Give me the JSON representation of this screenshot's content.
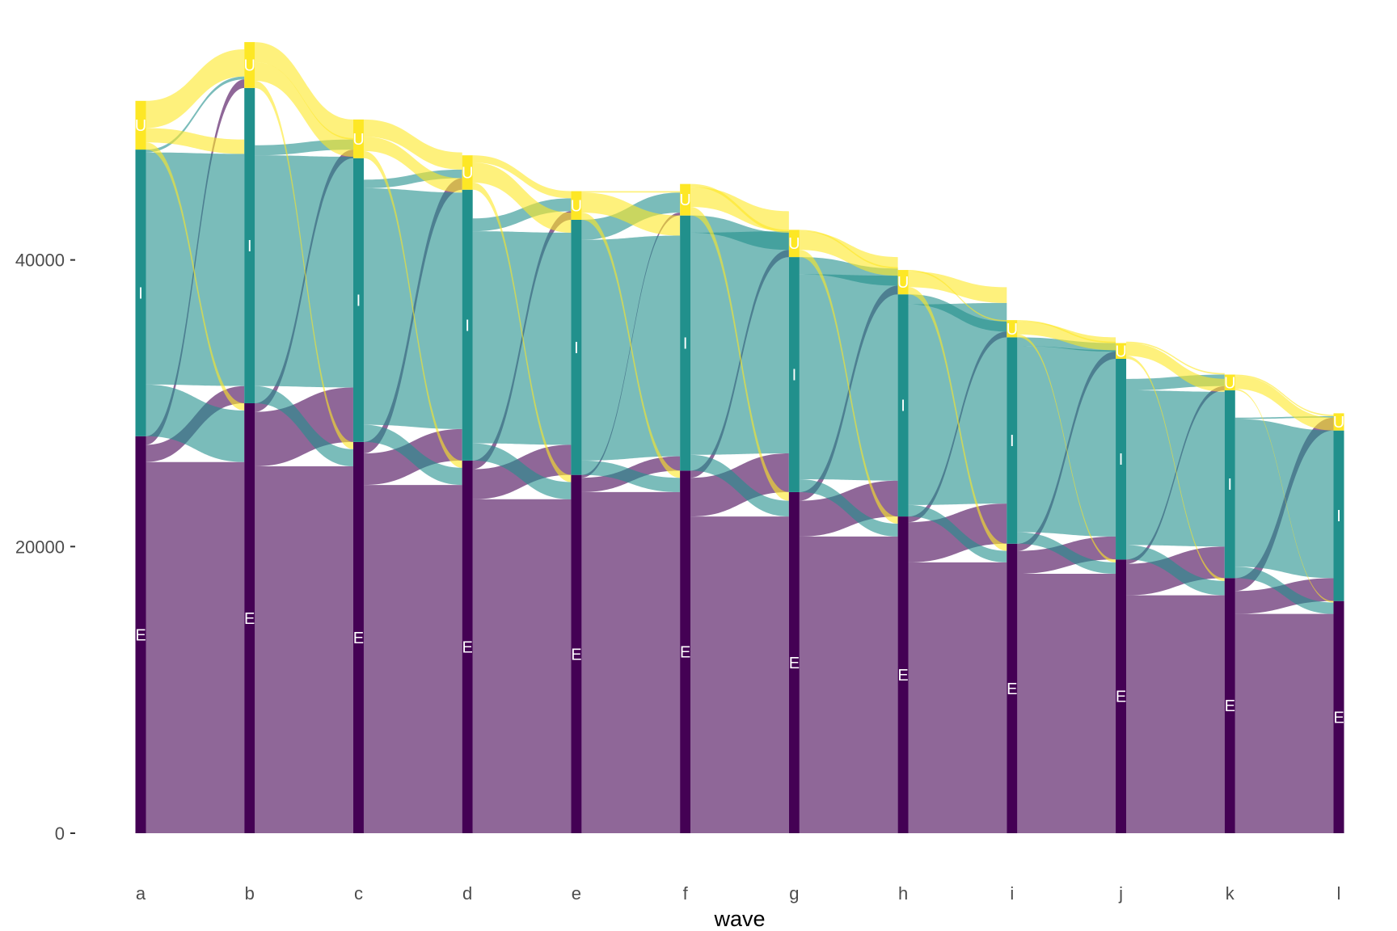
{
  "chart_data": {
    "type": "alluvial",
    "title": "",
    "xlabel": "wave",
    "ylabel": "",
    "ylim": [
      0,
      56000
    ],
    "yticks": [
      {
        "value": 0,
        "label": "0"
      },
      {
        "value": 20000,
        "label": "20000"
      },
      {
        "value": 40000,
        "label": "40000"
      }
    ],
    "categories": [
      "a",
      "b",
      "c",
      "d",
      "e",
      "f",
      "g",
      "h",
      "i",
      "j",
      "k",
      "l"
    ],
    "grid": false,
    "legend": "none",
    "stratum_colors": {
      "E": "#440154",
      "I": "#21908C",
      "U": "#FDE725"
    },
    "flow_alpha": 0.6,
    "strata": {
      "E": [
        27700,
        30000,
        27300,
        26000,
        25000,
        25300,
        23800,
        22100,
        20200,
        19100,
        17800,
        16200
      ],
      "I": [
        20000,
        22000,
        19800,
        18900,
        17800,
        17800,
        16400,
        15500,
        14400,
        14000,
        13100,
        11900
      ],
      "U": [
        3400,
        3200,
        2700,
        2400,
        2000,
        2200,
        1900,
        1700,
        1200,
        1100,
        1100,
        1200
      ]
    },
    "transitions": [
      {
        "from_wave": "a",
        "to_wave": "b",
        "flows": {
          "E_E": 25900,
          "E_I": 1200,
          "E_U": 600,
          "I_E": 3600,
          "I_I": 16200,
          "I_U": 200,
          "U_E": 500,
          "U_I": 1000,
          "U_U": 1900
        }
      },
      {
        "from_wave": "b",
        "to_wave": "c",
        "flows": {
          "E_E": 25600,
          "E_I": 3800,
          "E_U": 600,
          "I_E": 1200,
          "I_I": 16100,
          "I_U": 700,
          "U_E": 500,
          "U_I": 1300,
          "U_U": 1400
        }
      },
      {
        "from_wave": "c",
        "to_wave": "d",
        "flows": {
          "E_E": 24300,
          "E_I": 2200,
          "E_U": 800,
          "I_E": 1200,
          "I_I": 16500,
          "I_U": 600,
          "U_E": 500,
          "U_I": 1000,
          "U_U": 1200
        }
      },
      {
        "from_wave": "d",
        "to_wave": "e",
        "flows": {
          "E_E": 23300,
          "E_I": 2100,
          "E_U": 600,
          "I_E": 1200,
          "I_I": 14800,
          "I_U": 900,
          "U_E": 500,
          "U_I": 1400,
          "U_U": 500
        }
      },
      {
        "from_wave": "e",
        "to_wave": "f",
        "flows": {
          "E_E": 23800,
          "E_I": 1000,
          "E_U": 200,
          "I_E": 1000,
          "I_I": 15400,
          "I_U": 1400,
          "U_E": 500,
          "U_I": 1400,
          "U_U": 100
        }
      },
      {
        "from_wave": "f",
        "to_wave": "g",
        "flows": {
          "E_E": 22100,
          "E_I": 2700,
          "E_U": 500,
          "I_E": 1100,
          "I_I": 15500,
          "I_U": 1200,
          "U_E": 600,
          "U_I": 1400,
          "U_U": 200
        }
      },
      {
        "from_wave": "g",
        "to_wave": "h",
        "flows": {
          "E_E": 20700,
          "E_I": 2500,
          "E_U": 600,
          "I_E": 900,
          "I_I": 14300,
          "I_U": 1200,
          "U_E": 500,
          "U_I": 1300,
          "U_U": 100
        }
      },
      {
        "from_wave": "h",
        "to_wave": "i",
        "flows": {
          "E_E": 18900,
          "E_I": 2800,
          "E_U": 400,
          "I_E": 800,
          "I_I": 14000,
          "I_U": 700,
          "U_E": 500,
          "U_I": 1100,
          "U_U": 100
        }
      },
      {
        "from_wave": "i",
        "to_wave": "j",
        "flows": {
          "E_E": 18100,
          "E_I": 1600,
          "E_U": 500,
          "I_E": 800,
          "I_I": 13000,
          "I_U": 600,
          "U_E": 200,
          "U_I": 900,
          "U_U": 100
        }
      },
      {
        "from_wave": "j",
        "to_wave": "k",
        "flows": {
          "E_E": 16600,
          "E_I": 2200,
          "E_U": 300,
          "I_E": 1000,
          "I_I": 10800,
          "I_U": 800,
          "U_E": 200,
          "U_I": 900,
          "U_U": 100
        }
      },
      {
        "from_wave": "k",
        "to_wave": "l",
        "flows": {
          "E_E": 15300,
          "E_I": 1600,
          "E_U": 900,
          "I_E": 800,
          "I_I": 10300,
          "I_U": 100,
          "U_E": 100,
          "U_I": 900,
          "U_U": 100
        }
      }
    ]
  }
}
